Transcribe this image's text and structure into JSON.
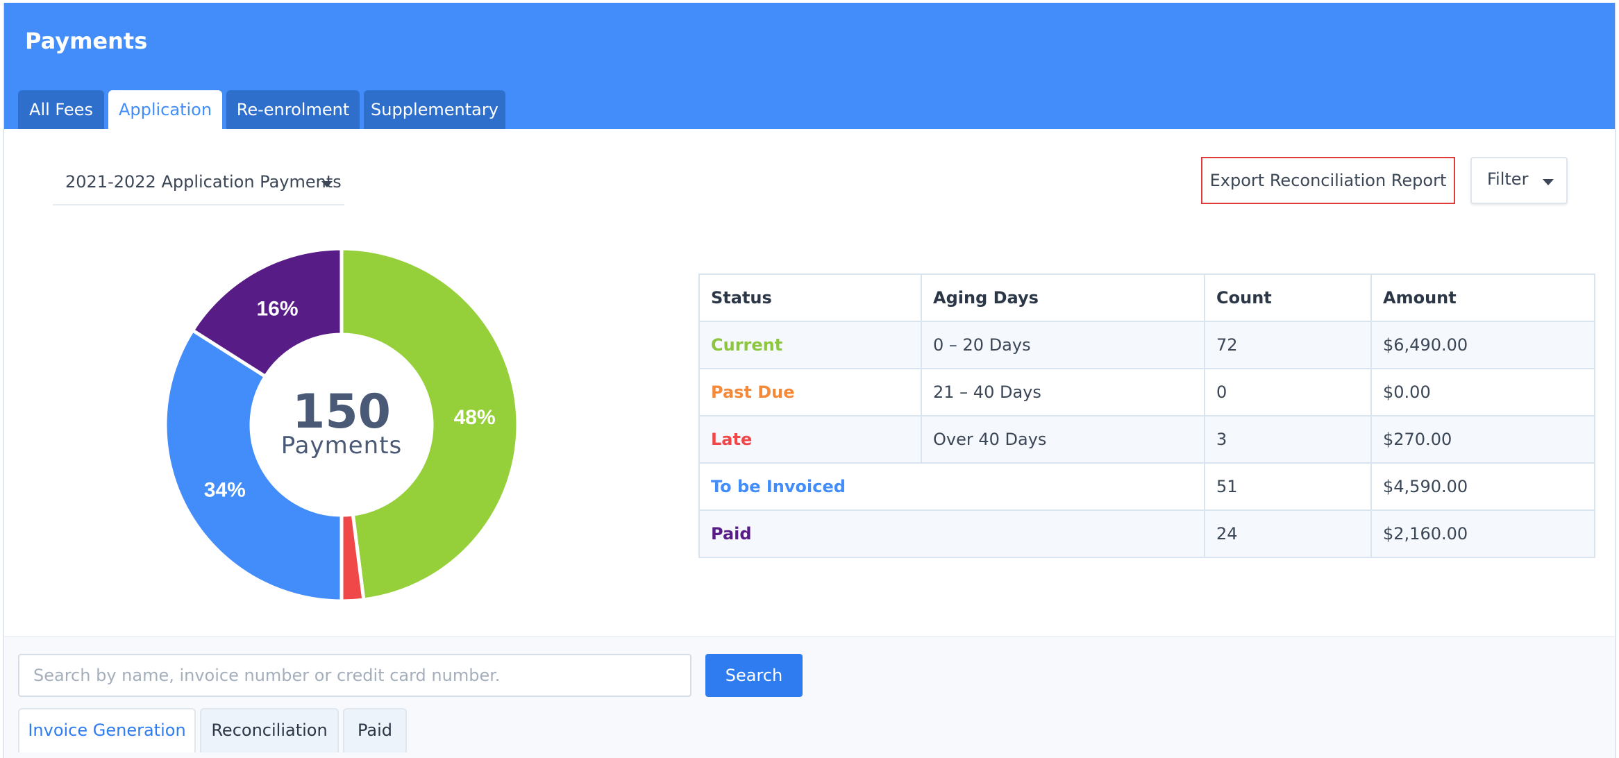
{
  "header": {
    "title": "Payments",
    "tabs": [
      {
        "label": "All Fees"
      },
      {
        "label": "Application"
      },
      {
        "label": "Re-enrolment"
      },
      {
        "label": "Supplementary"
      }
    ],
    "active_tab": "Application",
    "background": "#428df9"
  },
  "period_select": {
    "value": "2021-2022 Application Payments"
  },
  "actions": {
    "export_label": "Export Reconciliation Report",
    "filter_label": "Filter"
  },
  "summary": {
    "total": "150",
    "unit": "Payments"
  },
  "chart_data": {
    "type": "pie",
    "center_label": "150 Payments",
    "slices": [
      {
        "label": "Current",
        "value": 72,
        "percent_label": "48%",
        "color": "#95d03a"
      },
      {
        "label": "Past Due",
        "value": 0,
        "percent_label": "",
        "color": "#f5893a"
      },
      {
        "label": "Late",
        "value": 3,
        "percent_label": "",
        "color": "#f04848"
      },
      {
        "label": "To be Invoiced",
        "value": 51,
        "percent_label": "34%",
        "color": "#428df9"
      },
      {
        "label": "Paid",
        "value": 24,
        "percent_label": "16%",
        "color": "#581c87"
      }
    ]
  },
  "table": {
    "headers": [
      "Status",
      "Aging Days",
      "Count",
      "Amount"
    ],
    "rows": [
      {
        "status": "Current",
        "aging": "0 – 20 Days",
        "count": "72",
        "amount": "$6,490.00",
        "color": "#8cc63f"
      },
      {
        "status": "Past Due",
        "aging": "21 – 40 Days",
        "count": "0",
        "amount": "$0.00",
        "color": "#f5893a"
      },
      {
        "status": "Late",
        "aging": "Over 40 Days",
        "count": "3",
        "amount": "$270.00",
        "color": "#f04848"
      },
      {
        "status": "To be Invoiced",
        "aging": "",
        "count": "51",
        "amount": "$4,590.00",
        "color": "#428df9"
      },
      {
        "status": "Paid",
        "aging": "",
        "count": "24",
        "amount": "$2,160.00",
        "color": "#581c87"
      }
    ]
  },
  "search": {
    "placeholder": "Search by name, invoice number or credit card number.",
    "value": "",
    "button_label": "Search"
  },
  "subtabs": [
    {
      "label": "Invoice Generation"
    },
    {
      "label": "Reconciliation"
    },
    {
      "label": "Paid"
    }
  ],
  "active_subtab": "Invoice Generation"
}
